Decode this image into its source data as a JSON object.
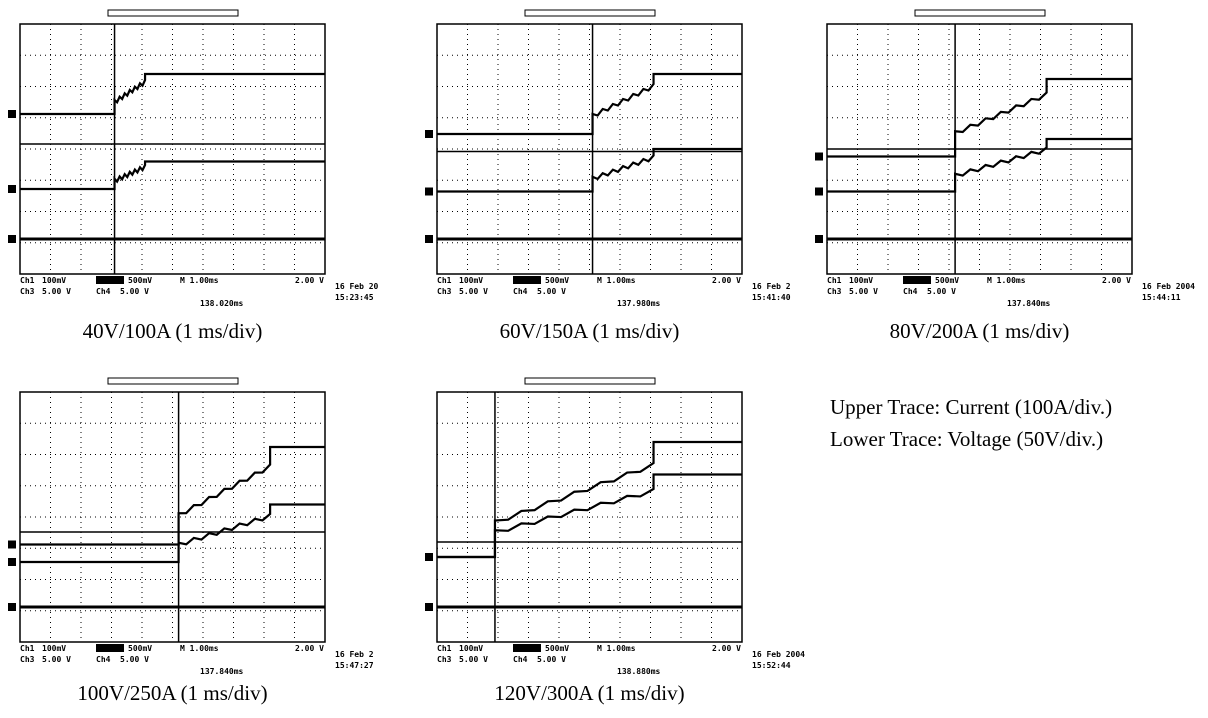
{
  "panels": [
    {
      "caption": "40V/100A (1 ms/div)",
      "ch1": "Ch1",
      "ch1_scale": "100mV",
      "ch2_scale": "500mV",
      "ch3": "Ch3",
      "ch3_scale": "5.00 V",
      "ch4": "Ch4",
      "ch4_scale": "5.00 V",
      "timebase": "M 1.00ms",
      "trigger": "2.00 V",
      "position": "138.020ms",
      "date": "16 Feb 20",
      "time": "15:23:45"
    },
    {
      "caption": "60V/150A (1 ms/div)",
      "ch1": "Ch1",
      "ch1_scale": "100mV",
      "ch2_scale": "500mV",
      "ch3": "Ch3",
      "ch3_scale": "5.00 V",
      "ch4": "Ch4",
      "ch4_scale": "5.00 V",
      "timebase": "M 1.00ms",
      "trigger": "2.00 V",
      "position": "137.980ms",
      "date": "16 Feb 2",
      "time": "15:41:40"
    },
    {
      "caption": "80V/200A (1 ms/div)",
      "ch1": "Ch1",
      "ch1_scale": "100mV",
      "ch2_scale": "500mV",
      "ch3": "Ch3",
      "ch3_scale": "5.00 V",
      "ch4": "Ch4",
      "ch4_scale": "5.00 V",
      "timebase": "M 1.00ms",
      "trigger": "2.00 V",
      "position": "137.840ms",
      "date": "16 Feb 2004",
      "time": "15:44:11"
    },
    {
      "caption": "100V/250A (1 ms/div)",
      "ch1": "Ch1",
      "ch1_scale": "100mV",
      "ch2_scale": "500mV",
      "ch3": "Ch3",
      "ch3_scale": "5.00 V",
      "ch4": "Ch4",
      "ch4_scale": "5.00 V",
      "timebase": "M 1.00ms",
      "trigger": "2.00 V",
      "position": "137.840ms",
      "date": "16 Feb 2",
      "time": "15:47:27"
    },
    {
      "caption": "120V/300A (1 ms/div)",
      "ch1": "Ch1",
      "ch1_scale": "100mV",
      "ch2_scale": "500mV",
      "ch3": "Ch3",
      "ch3_scale": "5.00 V",
      "ch4": "Ch4",
      "ch4_scale": "5.00 V",
      "timebase": "M 1.00ms",
      "trigger": "2.00 V",
      "position": "138.880ms",
      "date": "16 Feb 2004",
      "time": "15:52:44"
    }
  ],
  "legend": {
    "upper": "Upper Trace: Current (100A/div.)",
    "lower": "Lower Trace: Voltage (50V/div.)"
  }
}
